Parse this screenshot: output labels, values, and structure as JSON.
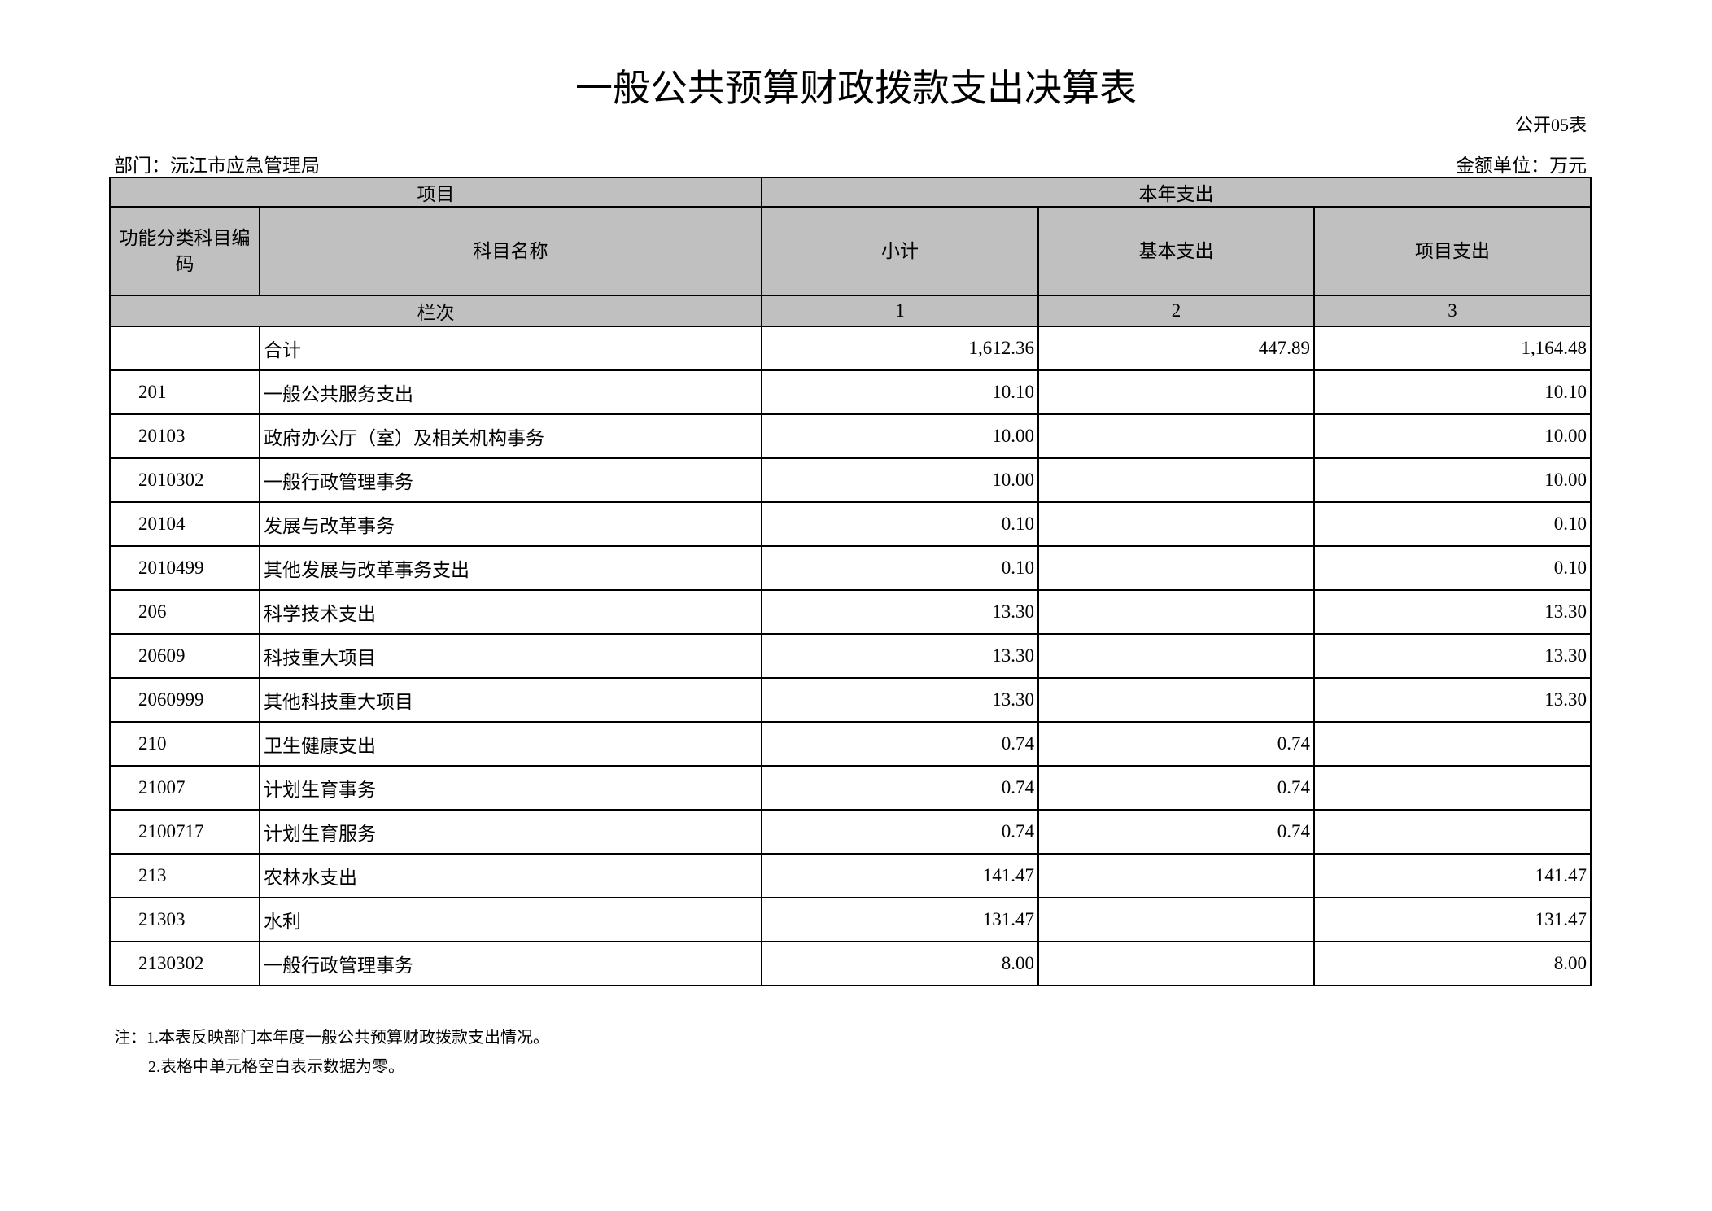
{
  "title": "一般公共预算财政拨款支出决算表",
  "form_no": "公开05表",
  "department": "部门：沅江市应急管理局",
  "unit": "金额单位：万元",
  "header": {
    "project": "项目",
    "current_year": "本年支出",
    "code": "功能分类科目编码",
    "name": "科目名称",
    "subtotal": "小计",
    "basic": "基本支出",
    "project_exp": "项目支出",
    "column_order": "栏次",
    "col1": "1",
    "col2": "2",
    "col3": "3"
  },
  "rows": [
    {
      "code": "",
      "name": "合计",
      "subtotal": "1,612.36",
      "basic": "447.89",
      "project": "1,164.48"
    },
    {
      "code": "201",
      "name": "一般公共服务支出",
      "subtotal": "10.10",
      "basic": "",
      "project": "10.10"
    },
    {
      "code": "20103",
      "name": "政府办公厅（室）及相关机构事务",
      "subtotal": "10.00",
      "basic": "",
      "project": "10.00"
    },
    {
      "code": "2010302",
      "name": "一般行政管理事务",
      "subtotal": "10.00",
      "basic": "",
      "project": "10.00"
    },
    {
      "code": "20104",
      "name": "发展与改革事务",
      "subtotal": "0.10",
      "basic": "",
      "project": "0.10"
    },
    {
      "code": "2010499",
      "name": "其他发展与改革事务支出",
      "subtotal": "0.10",
      "basic": "",
      "project": "0.10"
    },
    {
      "code": "206",
      "name": "科学技术支出",
      "subtotal": "13.30",
      "basic": "",
      "project": "13.30"
    },
    {
      "code": "20609",
      "name": "科技重大项目",
      "subtotal": "13.30",
      "basic": "",
      "project": "13.30"
    },
    {
      "code": "2060999",
      "name": "其他科技重大项目",
      "subtotal": "13.30",
      "basic": "",
      "project": "13.30"
    },
    {
      "code": "210",
      "name": "卫生健康支出",
      "subtotal": "0.74",
      "basic": "0.74",
      "project": ""
    },
    {
      "code": "21007",
      "name": "计划生育事务",
      "subtotal": "0.74",
      "basic": "0.74",
      "project": ""
    },
    {
      "code": "2100717",
      "name": "计划生育服务",
      "subtotal": "0.74",
      "basic": "0.74",
      "project": ""
    },
    {
      "code": "213",
      "name": "农林水支出",
      "subtotal": "141.47",
      "basic": "",
      "project": "141.47"
    },
    {
      "code": "21303",
      "name": "水利",
      "subtotal": "131.47",
      "basic": "",
      "project": "131.47"
    },
    {
      "code": "2130302",
      "name": "一般行政管理事务",
      "subtotal": "8.00",
      "basic": "",
      "project": "8.00"
    }
  ],
  "notes": [
    "注：1.本表反映部门本年度一般公共预算财政拨款支出情况。",
    "2.表格中单元格空白表示数据为零。"
  ]
}
